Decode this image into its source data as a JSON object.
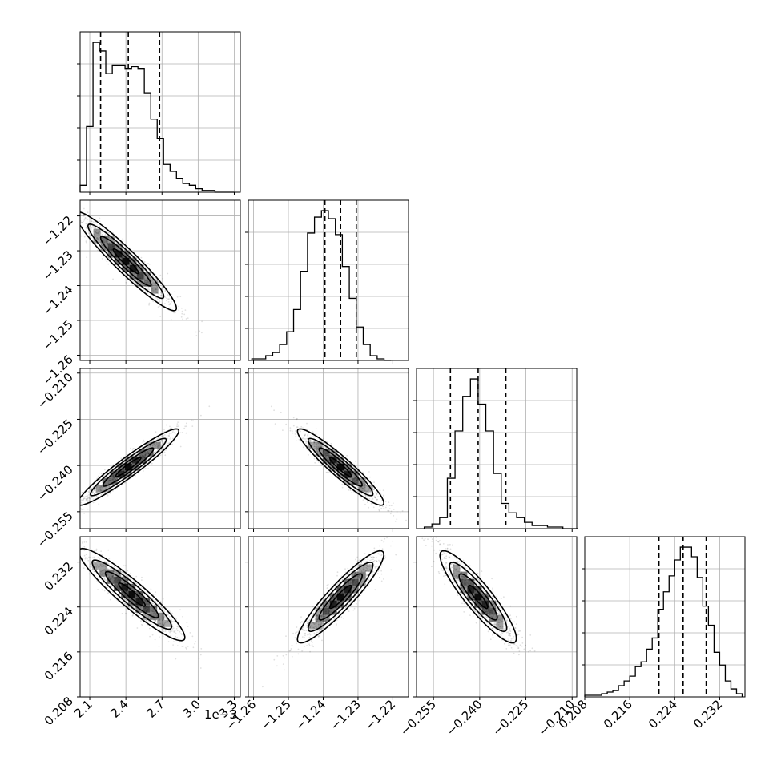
{
  "chart_data": {
    "type": "corner",
    "offset_text": "1e−3",
    "params": [
      {
        "index": 0,
        "range": [
          2.02,
          3.35
        ],
        "ticks": [
          2.1,
          2.4,
          2.7,
          3.0,
          3.3
        ],
        "ticklabels": [
          "2.1",
          "2.4",
          "2.7",
          "3.0",
          "3.3"
        ],
        "scale": "1e-3"
      },
      {
        "index": 1,
        "range": [
          -1.2615,
          -1.2155
        ],
        "ticks": [
          -1.26,
          -1.25,
          -1.24,
          -1.23,
          -1.22
        ],
        "ticklabels": [
          "−1.26",
          "−1.25",
          "−1.24",
          "−1.23",
          "−1.22"
        ]
      },
      {
        "index": 2,
        "range": [
          -0.2605,
          -0.2085
        ],
        "ticks": [
          -0.255,
          -0.24,
          -0.225,
          -0.21
        ],
        "ticklabels": [
          "−0.255",
          "−0.240",
          "−0.225",
          "−0.210"
        ]
      },
      {
        "index": 3,
        "range": [
          0.208,
          0.2365
        ],
        "ticks": [
          0.208,
          0.216,
          0.224,
          0.232
        ],
        "ticklabels": [
          "0.208",
          "0.216",
          "0.224",
          "0.232"
        ]
      }
    ],
    "quantiles": [
      [
        2.19,
        2.42,
        2.68
      ],
      [
        -1.2395,
        -1.235,
        -1.2305
      ],
      [
        -0.2495,
        -0.2405,
        -0.2315
      ],
      [
        0.2212,
        0.2255,
        0.2296
      ]
    ],
    "histograms": [
      {
        "bin_edges": [
          2.02,
          2.073,
          2.127,
          2.18,
          2.233,
          2.287,
          2.34,
          2.393,
          2.447,
          2.5,
          2.553,
          2.607,
          2.66,
          2.713,
          2.767,
          2.82,
          2.873,
          2.927,
          2.98,
          3.033,
          3.087,
          3.14,
          3.193,
          3.247,
          3.3
        ],
        "counts": [
          4,
          38,
          86,
          81,
          68,
          73,
          73,
          71,
          72,
          71,
          57,
          42,
          31,
          16,
          12,
          8,
          5,
          4,
          2,
          1,
          1,
          0,
          0,
          0
        ]
      },
      {
        "bin_edges": [
          -1.2605,
          -1.2585,
          -1.2565,
          -1.2545,
          -1.2525,
          -1.2505,
          -1.2485,
          -1.2465,
          -1.2445,
          -1.2425,
          -1.2405,
          -1.2385,
          -1.2365,
          -1.2345,
          -1.2325,
          -1.2305,
          -1.2285,
          -1.2265,
          -1.2245,
          -1.2225,
          -1.2205
        ],
        "counts": [
          1,
          1,
          3,
          5,
          10,
          18,
          32,
          56,
          80,
          90,
          94,
          89,
          79,
          59,
          39,
          21,
          10,
          3,
          1,
          0
        ]
      },
      {
        "bin_edges": [
          -0.258,
          -0.2555,
          -0.253,
          -0.2505,
          -0.248,
          -0.2455,
          -0.243,
          -0.2405,
          -0.238,
          -0.2355,
          -0.233,
          -0.2305,
          -0.228,
          -0.2255,
          -0.223,
          -0.2205,
          -0.218,
          -0.2155,
          -0.213,
          -0.2105,
          -0.208
        ],
        "counts": [
          1,
          3,
          7,
          32,
          62,
          84,
          95,
          79,
          62,
          35,
          16,
          10,
          7,
          4,
          2,
          2,
          1,
          1,
          0,
          0
        ]
      },
      {
        "bin_edges": [
          0.208,
          0.209,
          0.21,
          0.211,
          0.212,
          0.213,
          0.214,
          0.215,
          0.216,
          0.217,
          0.218,
          0.219,
          0.22,
          0.221,
          0.222,
          0.223,
          0.224,
          0.225,
          0.226,
          0.227,
          0.228,
          0.229,
          0.23,
          0.231,
          0.232,
          0.233,
          0.234,
          0.235,
          0.236
        ],
        "counts": [
          1,
          1,
          1,
          2,
          3,
          4,
          7,
          10,
          13,
          19,
          22,
          30,
          37,
          55,
          66,
          76,
          86,
          94,
          94,
          88,
          75,
          57,
          45,
          28,
          20,
          10,
          5,
          2
        ]
      }
    ],
    "pairs": [
      {
        "x": 0,
        "y": 1,
        "center": [
          2.4,
          -1.233
        ],
        "sd": [
          0.21,
          0.0071
        ],
        "rho": -0.95
      },
      {
        "x": 0,
        "y": 2,
        "center": [
          2.42,
          -0.2405
        ],
        "sd": [
          0.21,
          0.0062
        ],
        "rho": 0.95
      },
      {
        "x": 1,
        "y": 2,
        "center": [
          -1.235,
          -0.2405
        ],
        "sd": [
          0.0062,
          0.0062
        ],
        "rho": -0.94
      },
      {
        "x": 0,
        "y": 3,
        "center": [
          2.45,
          0.2262
        ],
        "sd": [
          0.22,
          0.0041
        ],
        "rho": -0.93
      },
      {
        "x": 1,
        "y": 3,
        "center": [
          -1.235,
          0.2258
        ],
        "sd": [
          0.0062,
          0.0041
        ],
        "rho": 0.92
      },
      {
        "x": 2,
        "y": 3,
        "center": [
          -0.2405,
          0.2258
        ],
        "sd": [
          0.0062,
          0.0041
        ],
        "rho": -0.9
      }
    ],
    "contour_levels": [
      0.5,
      1.0,
      1.5,
      2.0
    ],
    "grid": true
  }
}
